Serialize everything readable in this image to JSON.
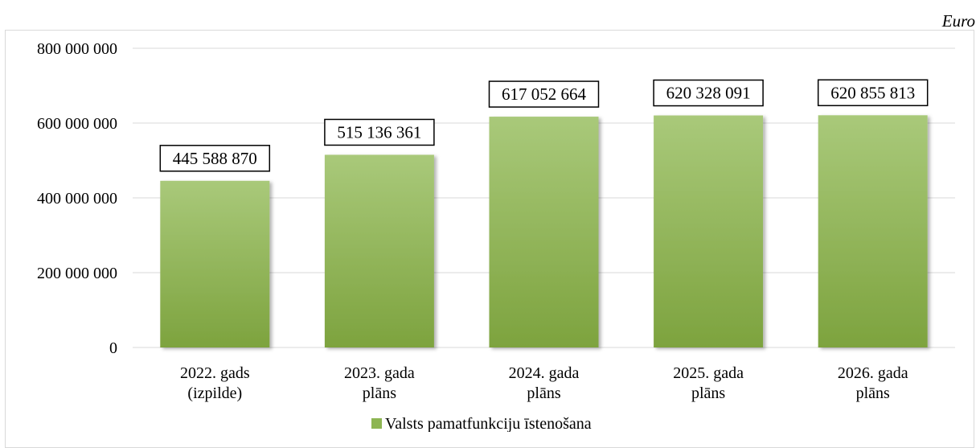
{
  "unit_label": "Euro",
  "chart_data": {
    "type": "bar",
    "categories": [
      [
        "2022. gads",
        "(izpilde)"
      ],
      [
        "2023. gada",
        "plāns"
      ],
      [
        "2024. gada",
        "plāns"
      ],
      [
        "2025. gada",
        "plāns"
      ],
      [
        "2026. gada",
        "plāns"
      ]
    ],
    "series": [
      {
        "name": "Valsts pamatfunkciju īstenošana",
        "values": [
          445588870,
          515136361,
          617052664,
          620328091,
          620855813
        ],
        "value_labels": [
          "445 588 870",
          "515 136 361",
          "617 052 664",
          "620 328 091",
          "620 855 813"
        ]
      }
    ],
    "ylim": [
      0,
      800000000
    ],
    "yticks": [
      0,
      200000000,
      400000000,
      600000000,
      800000000
    ],
    "ytick_labels": [
      "0",
      "200 000 000",
      "400 000 000",
      "600 000 000",
      "800 000 000"
    ],
    "grid": true,
    "legend_position": "bottom",
    "colors": {
      "bar_top": "#a9c97a",
      "bar_bottom": "#7da33e",
      "grid": "#d9d9d9",
      "legend_marker": "#8db552"
    }
  }
}
